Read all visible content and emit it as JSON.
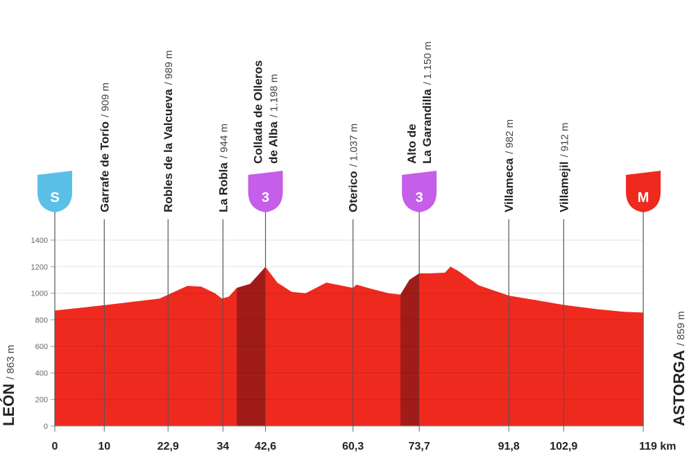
{
  "chart_data": {
    "type": "area",
    "color": "#ee2a1f",
    "climb_color": "#a01c18",
    "x": [
      0,
      10,
      15.6,
      21.2,
      24.7,
      26.8,
      29.6,
      32.4,
      33.8,
      35.2,
      36.8,
      39.5,
      42.6,
      45,
      47.9,
      50.7,
      54.9,
      57.7,
      60.3,
      61,
      63.3,
      67.5,
      69.9,
      71.7,
      73.7,
      76,
      78.9,
      80,
      81.5,
      85.7,
      91.8,
      97,
      102.9,
      109.6,
      115.2,
      119
    ],
    "values": [
      870,
      910,
      935,
      960,
      1020,
      1055,
      1050,
      1000,
      960,
      975,
      1040,
      1070,
      1198,
      1080,
      1010,
      1000,
      1080,
      1060,
      1040,
      1065,
      1040,
      1000,
      990,
      1100,
      1150,
      1150,
      1155,
      1200,
      1170,
      1060,
      982,
      950,
      912,
      880,
      860,
      855
    ],
    "climbs": [
      {
        "start": 36.8,
        "end": 42.6
      },
      {
        "start": 69.9,
        "end": 73.7
      }
    ],
    "xlim": [
      0,
      119
    ],
    "ylim": [
      0,
      1400
    ],
    "yticks": [
      0,
      200,
      400,
      600,
      800,
      1000,
      1200,
      1400
    ],
    "xticks": [
      0,
      10,
      {
        "value": 22.9,
        "label": "22,9"
      },
      34,
      {
        "value": 42.6,
        "label": "42,6"
      },
      {
        "value": 60.3,
        "label": "60,3"
      },
      {
        "value": 73.7,
        "label": "73,7"
      },
      {
        "value": 91.8,
        "label": "91,8"
      },
      {
        "value": 102.9,
        "label": "102,9"
      },
      {
        "value": 119,
        "label": "119 km"
      }
    ],
    "grid": true,
    "start": {
      "name": "LEÓN",
      "detail": "/ 863 m"
    },
    "finish": {
      "name": "ASTORGA",
      "detail": "/ 859 m"
    },
    "markers": [
      {
        "badge": "S",
        "badge_color": "#5bc0e8"
      },
      {
        "name": [
          "Garrafe de Torío"
        ],
        "detail": "/ 909 m"
      },
      {
        "name": [
          "Robles de la Valcueva"
        ],
        "detail": "/ 989 m"
      },
      {
        "name": [
          "La Robla"
        ],
        "detail": "/ 944 m"
      },
      {
        "name": [
          "Collada de Olleros",
          "de Alba"
        ],
        "detail": "/ 1.198 m",
        "badge": "3",
        "badge_color": "#c55ee8"
      },
      {
        "name": [
          "Oterico"
        ],
        "detail": "/ 1.037 m"
      },
      {
        "name": [
          "Alto de",
          "La Garandilla"
        ],
        "detail": "/ 1.150 m",
        "badge": "3",
        "badge_color": "#c55ee8"
      },
      {
        "name": [
          "Villameca"
        ],
        "detail": "/ 982 m"
      },
      {
        "name": [
          "Villamejil"
        ],
        "detail": "/ 912 m"
      },
      {
        "badge": "M",
        "badge_color": "#ee2a1f"
      }
    ]
  }
}
